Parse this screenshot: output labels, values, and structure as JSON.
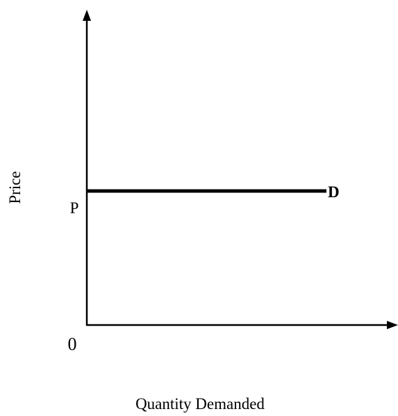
{
  "chart_data": {
    "type": "line",
    "title": "",
    "xlabel": "Quantity Demanded",
    "ylabel": "Price",
    "origin_label": "0",
    "y_tick_labels": [
      "P"
    ],
    "xlim": [
      0,
      100
    ],
    "ylim": [
      0,
      100
    ],
    "grid": false,
    "legend": "none",
    "series": [
      {
        "name": "D",
        "x": [
          0,
          90
        ],
        "y": [
          50,
          50
        ]
      }
    ],
    "colors": {
      "axis": "#000000",
      "line": "#000000"
    }
  }
}
